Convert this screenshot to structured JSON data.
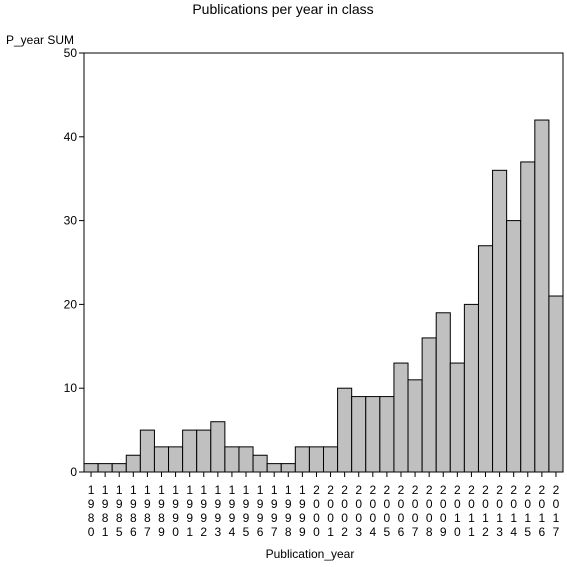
{
  "chart_data": {
    "type": "bar",
    "title": "Publications per year in class",
    "ylabel": "P_year SUM",
    "xlabel": "Publication_year",
    "ylim": [
      0,
      50
    ],
    "yticks": [
      0,
      10,
      20,
      30,
      40,
      50
    ],
    "grid": false,
    "categories": [
      "1980",
      "1981",
      "1985",
      "1986",
      "1987",
      "1989",
      "1990",
      "1991",
      "1992",
      "1993",
      "1994",
      "1995",
      "1996",
      "1997",
      "1998",
      "1999",
      "2000",
      "2001",
      "2002",
      "2003",
      "2004",
      "2005",
      "2006",
      "2007",
      "2008",
      "2009",
      "2010",
      "2011",
      "2012",
      "2013",
      "2014",
      "2015",
      "2016",
      "2017"
    ],
    "values": [
      1,
      1,
      1,
      2,
      5,
      3,
      3,
      5,
      5,
      6,
      3,
      3,
      2,
      1,
      1,
      3,
      3,
      3,
      10,
      9,
      9,
      9,
      13,
      11,
      16,
      19,
      13,
      20,
      27,
      36,
      30,
      37,
      42,
      21
    ],
    "bar_color": "#c0c0c0"
  }
}
